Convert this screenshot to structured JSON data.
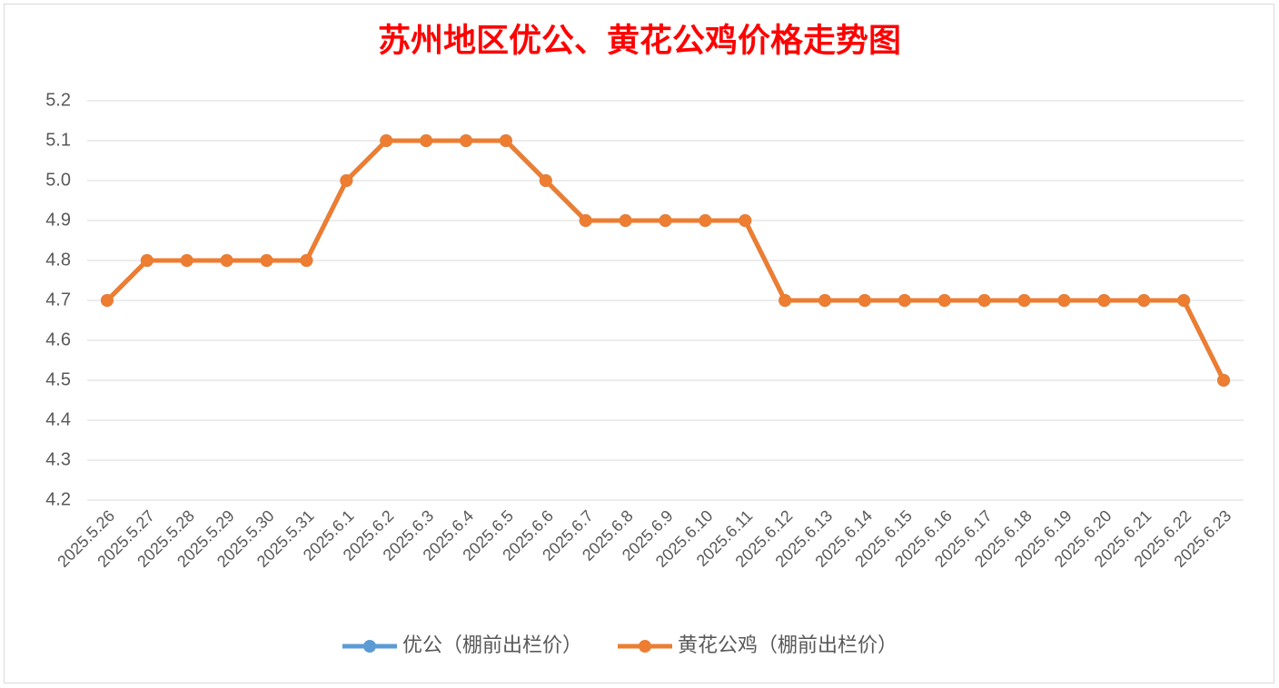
{
  "chart_data": {
    "type": "line",
    "title": "苏州地区优公、黄花公鸡价格走势图",
    "categories": [
      "2025.5.26",
      "2025.5.27",
      "2025.5.28",
      "2025.5.29",
      "2025.5.30",
      "2025.5.31",
      "2025.6.1",
      "2025.6.2",
      "2025.6.3",
      "2025.6.4",
      "2025.6.5",
      "2025.6.6",
      "2025.6.7",
      "2025.6.8",
      "2025.6.9",
      "2025.6.10",
      "2025.6.11",
      "2025.6.12",
      "2025.6.13",
      "2025.6.14",
      "2025.6.15",
      "2025.6.16",
      "2025.6.17",
      "2025.6.18",
      "2025.6.19",
      "2025.6.20",
      "2025.6.21",
      "2025.6.22",
      "2025.6.23"
    ],
    "series": [
      {
        "name": "优公（棚前出栏价）",
        "color": "#5b9bd5",
        "values": [
          4.7,
          4.8,
          4.8,
          4.8,
          4.8,
          4.8,
          5.0,
          5.1,
          5.1,
          5.1,
          5.1,
          5.0,
          4.9,
          4.9,
          4.9,
          4.9,
          4.9,
          4.7,
          4.7,
          4.7,
          4.7,
          4.7,
          4.7,
          4.7,
          4.7,
          4.7,
          4.7,
          4.7,
          4.5
        ]
      },
      {
        "name": "黄花公鸡（棚前出栏价）",
        "color": "#ed7d31",
        "values": [
          4.7,
          4.8,
          4.8,
          4.8,
          4.8,
          4.8,
          5.0,
          5.1,
          5.1,
          5.1,
          5.1,
          5.0,
          4.9,
          4.9,
          4.9,
          4.9,
          4.9,
          4.7,
          4.7,
          4.7,
          4.7,
          4.7,
          4.7,
          4.7,
          4.7,
          4.7,
          4.7,
          4.7,
          4.5
        ]
      }
    ],
    "ylim": [
      4.2,
      5.2
    ],
    "yticks": [
      4.2,
      4.3,
      4.4,
      4.5,
      4.6,
      4.7,
      4.8,
      4.9,
      {
        "value": 5,
        "label": "5.0"
      },
      5.1,
      5.2
    ],
    "grid": true,
    "legend": "bottom"
  }
}
